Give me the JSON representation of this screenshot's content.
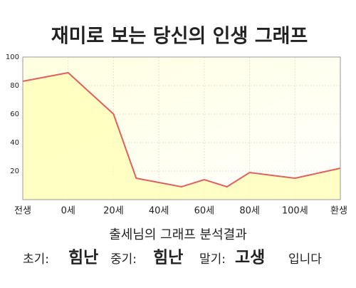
{
  "chart_data": {
    "type": "line",
    "title": "재미로 보는 당신의 인생 그래프",
    "x": [
      -20,
      0,
      20,
      30,
      40,
      50,
      60,
      70,
      80,
      100,
      120
    ],
    "series": [
      {
        "color": "#e06060",
        "fill": "#ffffb8",
        "values": [
          83,
          89,
          60,
          15,
          12,
          9,
          14,
          9,
          19,
          15,
          22
        ]
      }
    ],
    "xlim": [
      -20,
      120
    ],
    "xticks": [
      {
        "value": -20,
        "label": "전생"
      },
      {
        "value": 0,
        "label": "0세"
      },
      {
        "value": 20,
        "label": "20세"
      },
      {
        "value": 40,
        "label": "40세"
      },
      {
        "value": 60,
        "label": "60세"
      },
      {
        "value": 80,
        "label": "80세"
      },
      {
        "value": 100,
        "label": "100세"
      },
      {
        "value": 120,
        "label": "환생"
      }
    ],
    "ylim": [
      0,
      100
    ],
    "yticks": [
      20,
      40,
      60,
      80,
      100
    ],
    "grid": true
  },
  "analysis": {
    "heading": "출세님의 그래프 분석결과",
    "items": [
      {
        "label": "초기:",
        "result": "힘난"
      },
      {
        "label": "중기:",
        "result": "힘난"
      },
      {
        "label": "말기:",
        "result": "고생"
      }
    ],
    "ending": "입니다"
  }
}
